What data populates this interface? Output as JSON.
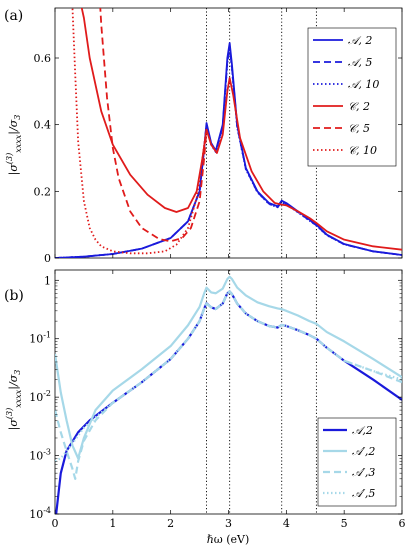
{
  "chart_data": [
    {
      "panel_label": "(a)",
      "type": "line",
      "ylabel": "|σ^(3)_xxxx|/σ3",
      "xlabel": "",
      "xlim": [
        0,
        6
      ],
      "ylim": [
        0,
        0.75
      ],
      "yscale": "linear",
      "xticks": [
        "0",
        "1",
        "2",
        "3",
        "4",
        "5",
        "6"
      ],
      "yticks": [
        "0",
        "0.2",
        "0.4",
        "0.6"
      ],
      "ytick_values": [
        0,
        0.2,
        0.4,
        0.6
      ],
      "vlines": [
        2.62,
        3.02,
        3.92,
        4.52
      ],
      "legend_position": "top-right",
      "series": [
        {
          "name": "𝒜, 2",
          "color": "#1a1adb",
          "dash": "solid",
          "x": [
            0.0,
            0.5,
            1.0,
            1.5,
            2.0,
            2.3,
            2.5,
            2.58,
            2.62,
            2.7,
            2.78,
            2.9,
            2.98,
            3.02,
            3.06,
            3.15,
            3.3,
            3.5,
            3.7,
            3.85,
            3.92,
            4.0,
            4.2,
            4.4,
            4.52,
            4.7,
            5.0,
            5.5,
            6.0
          ],
          "y": [
            0.0,
            0.004,
            0.012,
            0.028,
            0.06,
            0.11,
            0.2,
            0.33,
            0.405,
            0.345,
            0.322,
            0.4,
            0.6,
            0.645,
            0.58,
            0.4,
            0.27,
            0.2,
            0.165,
            0.155,
            0.172,
            0.165,
            0.14,
            0.115,
            0.1,
            0.07,
            0.042,
            0.02,
            0.009
          ]
        },
        {
          "name": "𝒜, 5",
          "color": "#1a1adb",
          "dash": "dashed",
          "x": [
            0.0,
            0.5,
            1.0,
            1.5,
            2.0,
            2.3,
            2.5,
            2.58,
            2.62,
            2.7,
            2.78,
            2.9,
            2.98,
            3.02,
            3.06,
            3.15,
            3.3,
            3.5,
            3.7,
            3.85,
            3.92,
            4.0,
            4.2,
            4.4,
            4.52,
            4.7,
            5.0,
            5.5,
            6.0
          ],
          "y": [
            0.0,
            0.004,
            0.012,
            0.028,
            0.06,
            0.11,
            0.2,
            0.33,
            0.4,
            0.342,
            0.32,
            0.395,
            0.59,
            0.635,
            0.57,
            0.395,
            0.268,
            0.198,
            0.163,
            0.153,
            0.168,
            0.162,
            0.138,
            0.113,
            0.098,
            0.069,
            0.041,
            0.02,
            0.009
          ]
        },
        {
          "name": "𝒜, 10",
          "color": "#1a1adb",
          "dash": "dotted",
          "x": [
            0.0,
            0.5,
            1.0,
            1.5,
            2.0,
            2.3,
            2.5,
            2.58,
            2.62,
            2.7,
            2.78,
            2.9,
            2.98,
            3.02,
            3.06,
            3.15,
            3.3,
            3.5,
            3.7,
            3.85,
            3.92,
            4.0,
            4.2,
            4.4,
            4.52,
            4.7,
            5.0,
            5.5,
            6.0
          ],
          "y": [
            0.0,
            0.004,
            0.012,
            0.028,
            0.06,
            0.11,
            0.2,
            0.33,
            0.398,
            0.34,
            0.318,
            0.392,
            0.585,
            0.63,
            0.565,
            0.392,
            0.266,
            0.197,
            0.162,
            0.152,
            0.166,
            0.161,
            0.137,
            0.112,
            0.097,
            0.068,
            0.041,
            0.02,
            0.009
          ]
        },
        {
          "name": "𝒞, 2",
          "color": "#e01b1b",
          "dash": "solid",
          "x": [
            0.45,
            0.5,
            0.6,
            0.8,
            1.0,
            1.3,
            1.6,
            1.9,
            2.1,
            2.3,
            2.45,
            2.55,
            2.62,
            2.7,
            2.8,
            2.9,
            2.98,
            3.02,
            3.08,
            3.2,
            3.4,
            3.6,
            3.8,
            3.92,
            4.0,
            4.2,
            4.4,
            4.52,
            4.7,
            5.0,
            5.5,
            6.0
          ],
          "y": [
            0.76,
            0.72,
            0.6,
            0.44,
            0.34,
            0.25,
            0.19,
            0.15,
            0.138,
            0.15,
            0.2,
            0.3,
            0.385,
            0.34,
            0.315,
            0.37,
            0.5,
            0.54,
            0.49,
            0.36,
            0.26,
            0.2,
            0.165,
            0.16,
            0.158,
            0.14,
            0.12,
            0.105,
            0.08,
            0.055,
            0.035,
            0.025
          ]
        },
        {
          "name": "𝒞, 5",
          "color": "#e01b1b",
          "dash": "dashed",
          "x": [
            0.78,
            0.8,
            0.9,
            1.0,
            1.1,
            1.3,
            1.5,
            1.8,
            2.0,
            2.2,
            2.35,
            2.5,
            2.58,
            2.62
          ],
          "y": [
            0.76,
            0.7,
            0.48,
            0.33,
            0.24,
            0.14,
            0.09,
            0.057,
            0.05,
            0.06,
            0.09,
            0.17,
            0.3,
            0.385
          ]
        },
        {
          "name": "𝒞, 10",
          "color": "#e01b1b",
          "dash": "dotted",
          "x": [
            0.3,
            0.35,
            0.4,
            0.5,
            0.6,
            0.7,
            0.8,
            1.0,
            1.3,
            1.6,
            1.9,
            2.1,
            2.3,
            2.45,
            2.55,
            2.62
          ],
          "y": [
            0.76,
            0.55,
            0.35,
            0.17,
            0.09,
            0.055,
            0.035,
            0.02,
            0.014,
            0.014,
            0.02,
            0.04,
            0.09,
            0.18,
            0.3,
            0.39
          ]
        }
      ]
    },
    {
      "panel_label": "(b)",
      "type": "line",
      "ylabel": "|σ^(3)_xxxx|/σ3",
      "xlabel": "ℏω (eV)",
      "xlim": [
        0,
        6
      ],
      "ylim": [
        0.0001,
        1.5
      ],
      "yscale": "log",
      "xticks": [
        "0",
        "1",
        "2",
        "3",
        "4",
        "5",
        "6"
      ],
      "ytick_values": [
        0.0001,
        0.001,
        0.01,
        0.1,
        1
      ],
      "yticks": [
        "10",
        "10",
        "10",
        "10",
        "1"
      ],
      "ytick_exponents": [
        "-4",
        "-3",
        "-2",
        "-1",
        ""
      ],
      "vlines": [
        2.62,
        3.02,
        3.92,
        4.52
      ],
      "legend_position": "bottom-right",
      "series": [
        {
          "name": "𝒜,2",
          "color": "#1a1adb",
          "dash": "solid",
          "width": 2.2,
          "x": [
            0.02,
            0.1,
            0.2,
            0.4,
            0.6,
            1.0,
            1.5,
            2.0,
            2.3,
            2.5,
            2.58,
            2.62,
            2.7,
            2.78,
            2.9,
            2.98,
            3.02,
            3.06,
            3.15,
            3.3,
            3.5,
            3.7,
            3.85,
            3.92,
            4.0,
            4.2,
            4.4,
            4.52,
            4.7,
            5.0,
            5.5,
            6.0
          ],
          "y": [
            0.0001,
            0.0005,
            0.0012,
            0.0025,
            0.004,
            0.008,
            0.018,
            0.045,
            0.1,
            0.2,
            0.33,
            0.405,
            0.345,
            0.322,
            0.4,
            0.6,
            0.645,
            0.58,
            0.4,
            0.27,
            0.2,
            0.165,
            0.155,
            0.172,
            0.165,
            0.14,
            0.115,
            0.1,
            0.07,
            0.042,
            0.02,
            0.009
          ]
        },
        {
          "name": "𝒜′,2",
          "color": "#a6d8e8",
          "dash": "solid",
          "width": 2.2,
          "x": [
            0.0,
            0.1,
            0.2,
            0.3,
            0.4,
            0.5,
            0.7,
            1.0,
            1.5,
            2.0,
            2.3,
            2.5,
            2.58,
            2.62,
            2.7,
            2.78,
            2.9,
            2.98,
            3.02,
            3.06,
            3.15,
            3.3,
            3.5,
            3.7,
            3.85,
            3.92,
            4.0,
            4.2,
            4.4,
            4.52,
            4.7,
            5.0,
            5.5,
            6.0
          ],
          "y": [
            0.055,
            0.012,
            0.004,
            0.0015,
            0.0009,
            0.002,
            0.006,
            0.013,
            0.03,
            0.075,
            0.17,
            0.35,
            0.6,
            0.75,
            0.62,
            0.6,
            0.72,
            1.05,
            1.15,
            1.05,
            0.75,
            0.55,
            0.42,
            0.36,
            0.33,
            0.32,
            0.3,
            0.25,
            0.2,
            0.18,
            0.13,
            0.09,
            0.045,
            0.022
          ]
        },
        {
          "name": "𝒜′,3",
          "color": "#a6d8e8",
          "dash": "dashed",
          "width": 2.2,
          "x": [
            0.0,
            0.1,
            0.2,
            0.3,
            0.35,
            0.4,
            0.5,
            0.7,
            1.0,
            1.5,
            2.0,
            2.3,
            2.5,
            2.58,
            2.62,
            2.7,
            2.78,
            2.9,
            2.98,
            3.02,
            3.06,
            3.15,
            3.3,
            3.5,
            3.7,
            3.85,
            3.92,
            4.0,
            4.2,
            4.4,
            4.52,
            4.7,
            5.0,
            5.5,
            6.0
          ],
          "y": [
            0.006,
            0.0025,
            0.0012,
            0.0006,
            0.0004,
            0.0008,
            0.0018,
            0.004,
            0.008,
            0.018,
            0.045,
            0.1,
            0.2,
            0.33,
            0.4,
            0.345,
            0.322,
            0.4,
            0.6,
            0.645,
            0.58,
            0.4,
            0.27,
            0.2,
            0.165,
            0.155,
            0.172,
            0.165,
            0.14,
            0.115,
            0.1,
            0.07,
            0.042,
            0.028,
            0.018
          ]
        },
        {
          "name": "𝒜′,5",
          "color": "#a6d8e8",
          "dash": "dotted",
          "width": 2.2,
          "x": [
            0.0,
            0.1,
            0.2,
            0.3,
            0.4,
            0.5,
            0.7,
            1.0,
            1.5,
            2.0,
            2.3,
            2.5,
            2.58,
            2.62,
            2.7,
            2.78,
            2.9,
            2.98,
            3.02,
            3.06,
            3.15,
            3.3,
            3.5,
            3.7,
            3.85,
            3.92,
            4.0,
            4.2,
            4.4,
            4.52,
            4.7,
            5.0,
            5.5,
            6.0
          ],
          "y": [
            0.0008,
            0.0009,
            0.0012,
            0.0016,
            0.0022,
            0.003,
            0.0045,
            0.008,
            0.018,
            0.045,
            0.1,
            0.2,
            0.33,
            0.4,
            0.345,
            0.322,
            0.4,
            0.6,
            0.645,
            0.58,
            0.4,
            0.27,
            0.2,
            0.165,
            0.155,
            0.172,
            0.165,
            0.14,
            0.115,
            0.1,
            0.07,
            0.042,
            0.028,
            0.02
          ]
        }
      ]
    }
  ]
}
